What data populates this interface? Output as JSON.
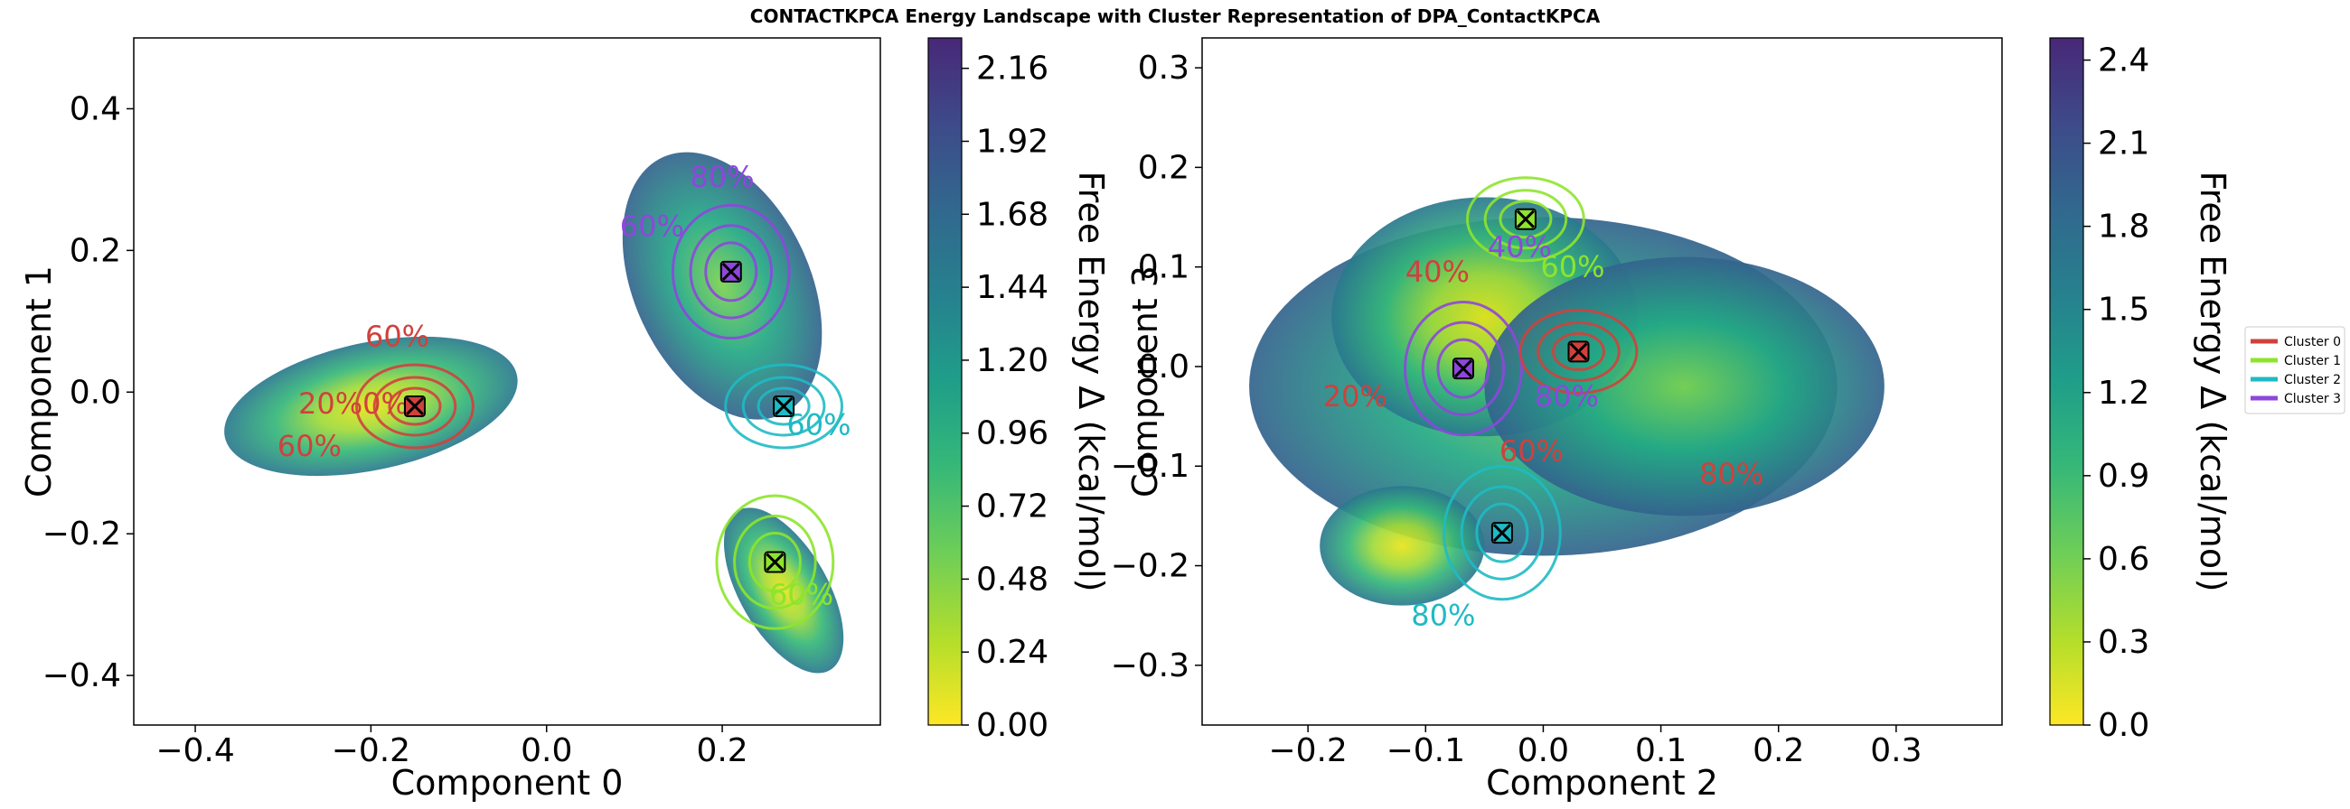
{
  "title": "CONTACTKPCA Energy Landscape with Cluster Representation of DPA_ContactKPCA",
  "legend": {
    "placement": "right",
    "entries": [
      {
        "label": "Cluster 0",
        "color": "#d0413c"
      },
      {
        "label": "Cluster 1",
        "color": "#8ee42c"
      },
      {
        "label": "Cluster 2",
        "color": "#1fbac4"
      },
      {
        "label": "Cluster 3",
        "color": "#8e47dc"
      }
    ]
  },
  "chart_data": [
    {
      "type": "heatmap",
      "xlabel": "Component 0",
      "ylabel": "Component 1",
      "xlim": [
        -0.47,
        0.38
      ],
      "ylim": [
        -0.47,
        0.5
      ],
      "xticks": [
        -0.4,
        -0.2,
        0.0,
        0.2
      ],
      "yticks": [
        -0.4,
        -0.2,
        0.0,
        0.2,
        0.4
      ],
      "xtick_labels": [
        "−0.4",
        "−0.2",
        "0.0",
        "0.2"
      ],
      "ytick_labels": [
        "−0.4",
        "−0.2",
        "0.0",
        "0.2",
        "0.4"
      ],
      "colorbar": {
        "label": "Free Energy Δ (kcal/mol)",
        "range": [
          0.0,
          2.26
        ],
        "ticks": [
          0.0,
          0.24,
          0.48,
          0.72,
          0.96,
          1.2,
          1.44,
          1.68,
          1.92,
          2.16
        ],
        "tick_labels": [
          "0.00",
          "0.24",
          "0.48",
          "0.72",
          "0.96",
          "1.20",
          "1.44",
          "1.68",
          "1.92",
          "2.16"
        ]
      },
      "centers": [
        {
          "cluster": "Cluster 0",
          "x": -0.15,
          "y": -0.02,
          "color": "#d0413c"
        },
        {
          "cluster": "Cluster 3",
          "x": 0.21,
          "y": 0.17,
          "color": "#8e47dc"
        },
        {
          "cluster": "Cluster 2",
          "x": 0.27,
          "y": -0.02,
          "color": "#1fbac4"
        },
        {
          "cluster": "Cluster 1",
          "x": 0.26,
          "y": -0.24,
          "color": "#8ee42c"
        }
      ],
      "contour_labels": [
        {
          "text": "60%",
          "x": -0.17,
          "y": 0.065,
          "color": "#d0413c"
        },
        {
          "text": "20%0%",
          "x": -0.22,
          "y": -0.03,
          "color": "#d0413c"
        },
        {
          "text": "60%",
          "x": -0.27,
          "y": -0.09,
          "color": "#d0413c"
        },
        {
          "text": "80%",
          "x": 0.2,
          "y": 0.29,
          "color": "#8e47dc"
        },
        {
          "text": "60%",
          "x": 0.12,
          "y": 0.22,
          "color": "#8e47dc"
        },
        {
          "text": "60%",
          "x": 0.31,
          "y": -0.06,
          "color": "#1fbac4"
        },
        {
          "text": "60%",
          "x": 0.29,
          "y": -0.3,
          "color": "#8ee42c"
        }
      ]
    },
    {
      "type": "heatmap",
      "xlabel": "Component 2",
      "ylabel": "Component 3",
      "xlim": [
        -0.29,
        0.39
      ],
      "ylim": [
        -0.36,
        0.33
      ],
      "xticks": [
        -0.2,
        -0.1,
        0.0,
        0.1,
        0.2,
        0.3
      ],
      "yticks": [
        -0.3,
        -0.2,
        -0.1,
        0.0,
        0.1,
        0.2,
        0.3
      ],
      "xtick_labels": [
        "−0.2",
        "−0.1",
        "0.0",
        "0.1",
        "0.2",
        "0.3"
      ],
      "ytick_labels": [
        "−0.3",
        "−0.2",
        "−0.1",
        "0.0",
        "0.1",
        "0.2",
        "0.3"
      ],
      "colorbar": {
        "label": "Free Energy Δ (kcal/mol)",
        "range": [
          0.0,
          2.48
        ],
        "ticks": [
          0.0,
          0.3,
          0.6,
          0.9,
          1.2,
          1.5,
          1.8,
          2.1,
          2.4
        ],
        "tick_labels": [
          "0.0",
          "0.3",
          "0.6",
          "0.9",
          "1.2",
          "1.5",
          "1.8",
          "2.1",
          "2.4"
        ]
      },
      "centers": [
        {
          "cluster": "Cluster 1",
          "x": -0.015,
          "y": 0.148,
          "color": "#8ee42c"
        },
        {
          "cluster": "Cluster 3",
          "x": -0.068,
          "y": -0.002,
          "color": "#8e47dc"
        },
        {
          "cluster": "Cluster 0",
          "x": 0.03,
          "y": 0.015,
          "color": "#d0413c"
        },
        {
          "cluster": "Cluster 2",
          "x": -0.035,
          "y": -0.167,
          "color": "#1fbac4"
        }
      ],
      "contour_labels": [
        {
          "text": "40%",
          "x": -0.09,
          "y": 0.085,
          "color": "#d0413c"
        },
        {
          "text": "40%",
          "x": -0.02,
          "y": 0.11,
          "color": "#8e47dc"
        },
        {
          "text": "20%",
          "x": -0.16,
          "y": -0.04,
          "color": "#d0413c"
        },
        {
          "text": "60%",
          "x": 0.025,
          "y": 0.09,
          "color": "#8ee42c"
        },
        {
          "text": "60%",
          "x": -0.01,
          "y": -0.095,
          "color": "#d0413c"
        },
        {
          "text": "80%",
          "x": 0.02,
          "y": -0.04,
          "color": "#8e47dc"
        },
        {
          "text": "80%",
          "x": 0.16,
          "y": -0.118,
          "color": "#d0413c"
        },
        {
          "text": "80%",
          "x": -0.085,
          "y": -0.26,
          "color": "#1fbac4"
        }
      ]
    }
  ]
}
